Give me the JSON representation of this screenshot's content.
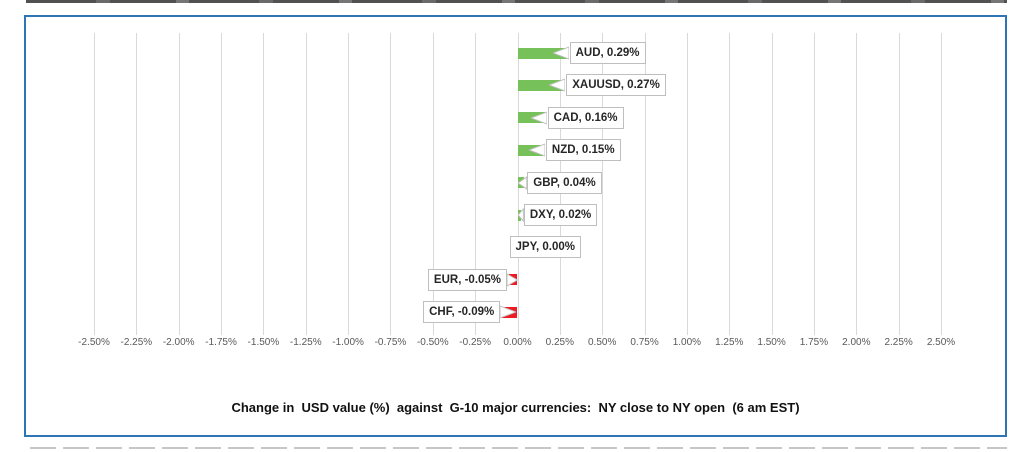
{
  "chart_data": {
    "type": "bar",
    "orientation": "horizontal",
    "title": "Change in  USD value (%)  against  G-10 major currencies:  NY close to NY open  (6 am EST)",
    "categories": [
      "AUD",
      "XAUUSD",
      "CAD",
      "NZD",
      "GBP",
      "DXY",
      "JPY",
      "EUR",
      "CHF"
    ],
    "values": [
      0.29,
      0.27,
      0.16,
      0.15,
      0.04,
      0.02,
      0.0,
      -0.05,
      -0.09
    ],
    "data_labels": [
      "AUD, 0.29%",
      "XAUUSD, 0.27%",
      "CAD, 0.16%",
      "NZD, 0.15%",
      "GBP, 0.04%",
      "DXY, 0.02%",
      "JPY, 0.00%",
      "EUR, -0.05%",
      "CHF, -0.09%"
    ],
    "xlim": [
      -2.5,
      2.5
    ],
    "tick_step": 0.25,
    "x_tick_labels": [
      "-2.50%",
      "-2.25%",
      "-2.00%",
      "-1.75%",
      "-1.50%",
      "-1.25%",
      "-1.00%",
      "-0.75%",
      "-0.50%",
      "-0.25%",
      "0.00%",
      "0.25%",
      "0.50%",
      "0.75%",
      "1.00%",
      "1.25%",
      "1.50%",
      "1.75%",
      "2.00%",
      "2.25%",
      "2.50%"
    ],
    "grid": true,
    "legend": "none",
    "colors": {
      "positive_bar": "#77C15A",
      "negative_bar": "#ED1C24",
      "gridline": "#D9D9D9",
      "axis_text": "#595959",
      "frame_border": "#2E75B6",
      "label_border": "#BFBFBF",
      "label_text": "#262626"
    }
  }
}
